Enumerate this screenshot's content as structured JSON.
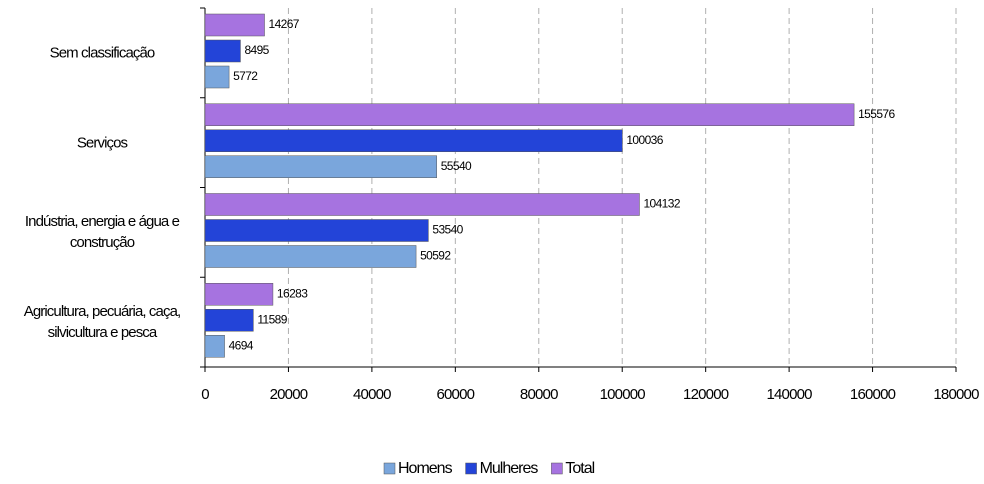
{
  "chart_data": {
    "type": "bar",
    "orientation": "horizontal",
    "categories": [
      "Sem classificação",
      "Serviços",
      "Indústria, energia e água e construção",
      "Agricultura, pecuária, caça, silvicultura e pesca"
    ],
    "series": [
      {
        "name": "Homens",
        "color": "#7aa6dc",
        "values": [
          5772,
          55540,
          50592,
          4694
        ]
      },
      {
        "name": "Mulheres",
        "color": "#2344d8",
        "values": [
          8495,
          100036,
          53540,
          11589
        ]
      },
      {
        "name": "Total",
        "color": "#a673e0",
        "values": [
          14267,
          155576,
          104132,
          16283
        ]
      }
    ],
    "xlim": [
      0,
      180000
    ],
    "xticks": [
      0,
      20000,
      40000,
      60000,
      80000,
      100000,
      120000,
      140000,
      160000,
      180000
    ],
    "grid": true,
    "legend": "bottom"
  }
}
